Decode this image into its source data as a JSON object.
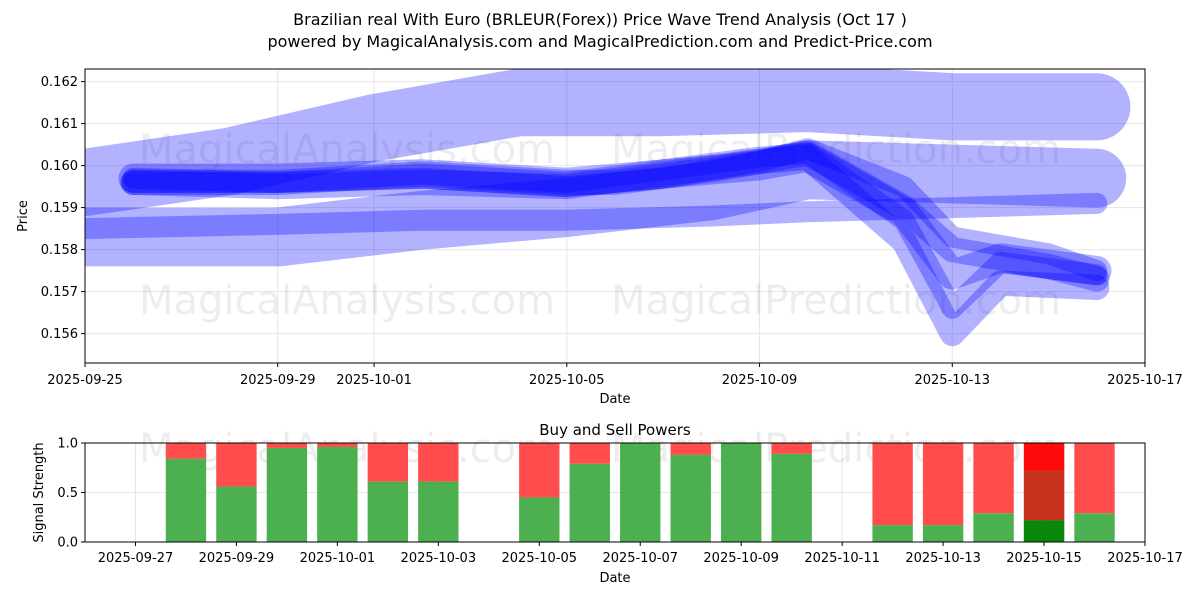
{
  "title_line1": "Brazilian real With Euro (BRLEUR(Forex)) Price Wave Trend Analysis (Oct 17 )",
  "title_line2": "powered by MagicalAnalysis.com and MagicalPrediction.com and Predict-Price.com",
  "watermarks": [
    "MagicalAnalysis.com",
    "MagicalPrediction.com"
  ],
  "colors": {
    "band": "#0000ff",
    "buy": "#008000",
    "sell": "#ff0000",
    "buy_bar": "#4caf50",
    "sell_bar": "#ff4d4d",
    "grid": "#e6e6e6"
  },
  "chart_data": [
    {
      "type": "area",
      "title": "",
      "xlabel": "Date",
      "ylabel": "Price",
      "x_ticks": [
        "2025-09-25",
        "2025-09-29",
        "2025-10-01",
        "2025-10-05",
        "2025-10-09",
        "2025-10-13",
        "2025-10-17"
      ],
      "y_ticks": [
        "0.156",
        "0.157",
        "0.158",
        "0.159",
        "0.160",
        "0.161",
        "0.162"
      ],
      "ylim": [
        0.1553,
        0.1623
      ],
      "xlim": [
        "2025-09-25",
        "2025-10-17"
      ],
      "grid": true,
      "series": [
        {
          "x": [
            "2025-09-25",
            "2025-09-28",
            "2025-10-01",
            "2025-10-04",
            "2025-10-07",
            "2025-10-10",
            "2025-10-13",
            "2025-10-16"
          ],
          "y": [
            0.1596,
            0.1601,
            0.1609,
            0.1615,
            0.1615,
            0.1616,
            0.1614,
            0.1614
          ],
          "width": 0.0016
        },
        {
          "x": [
            "2025-09-25",
            "2025-09-29",
            "2025-10-02",
            "2025-10-05",
            "2025-10-08",
            "2025-10-10",
            "2025-10-13",
            "2025-10-16"
          ],
          "y": [
            0.1583,
            0.1583,
            0.1587,
            0.159,
            0.1594,
            0.1599,
            0.1598,
            0.1597
          ],
          "width": 0.0014
        },
        {
          "x": [
            "2025-09-25",
            "2025-09-29",
            "2025-10-02",
            "2025-10-05",
            "2025-10-08",
            "2025-10-10",
            "2025-10-13",
            "2025-10-16"
          ],
          "y": [
            0.1585,
            0.1586,
            0.1587,
            0.1587,
            0.1588,
            0.1589,
            0.159,
            0.1591
          ],
          "width": 0.0005
        },
        {
          "x": [
            "2025-09-26",
            "2025-09-29",
            "2025-10-02",
            "2025-10-05",
            "2025-10-06",
            "2025-10-08",
            "2025-10-10",
            "2025-10-12",
            "2025-10-13",
            "2025-10-15",
            "2025-10-16"
          ],
          "y": [
            0.1596,
            0.1596,
            0.1598,
            0.1596,
            0.1596,
            0.1599,
            0.1603,
            0.159,
            0.158,
            0.1576,
            0.1573
          ],
          "width": 0.0006
        },
        {
          "x": [
            "2025-09-26",
            "2025-09-29",
            "2025-10-02",
            "2025-10-05",
            "2025-10-07",
            "2025-10-09",
            "2025-10-10",
            "2025-10-12",
            "2025-10-13",
            "2025-10-15",
            "2025-10-16"
          ],
          "y": [
            0.1596,
            0.1596,
            0.1597,
            0.1595,
            0.1597,
            0.1601,
            0.1604,
            0.1595,
            0.1583,
            0.1579,
            0.1575
          ],
          "width": 0.0005
        },
        {
          "x": [
            "2025-09-26",
            "2025-09-29",
            "2025-10-02",
            "2025-10-05",
            "2025-10-07",
            "2025-10-09",
            "2025-10-10",
            "2025-10-12",
            "2025-10-13",
            "2025-10-14",
            "2025-10-16"
          ],
          "y": [
            0.1596,
            0.1595,
            0.1596,
            0.1595,
            0.1598,
            0.1601,
            0.1602,
            0.1582,
            0.156,
            0.1572,
            0.1571
          ],
          "width": 0.0006
        },
        {
          "x": [
            "2025-09-26",
            "2025-09-29",
            "2025-10-02",
            "2025-10-05",
            "2025-10-07",
            "2025-10-09",
            "2025-10-10",
            "2025-10-12",
            "2025-10-13",
            "2025-10-14",
            "2025-10-16"
          ],
          "y": [
            0.1597,
            0.1596,
            0.1598,
            0.1596,
            0.1599,
            0.1602,
            0.1603,
            0.1587,
            0.1566,
            0.1577,
            0.1574
          ],
          "width": 0.0005
        },
        {
          "x": [
            "2025-09-26",
            "2025-09-29",
            "2025-10-02",
            "2025-10-05",
            "2025-10-07",
            "2025-10-09",
            "2025-10-10",
            "2025-10-12",
            "2025-10-13",
            "2025-10-14",
            "2025-10-16"
          ],
          "y": [
            0.1597,
            0.1597,
            0.1598,
            0.1596,
            0.1598,
            0.16,
            0.1602,
            0.1589,
            0.1574,
            0.1578,
            0.1575
          ],
          "width": 0.0007
        }
      ]
    },
    {
      "type": "bar",
      "title": "Buy and Sell Powers",
      "xlabel": "Date",
      "ylabel": "Signal Strength",
      "x_ticks": [
        "2025-09-27",
        "2025-09-29",
        "2025-10-01",
        "2025-10-03",
        "2025-10-05",
        "2025-10-07",
        "2025-10-09",
        "2025-10-11",
        "2025-10-13",
        "2025-10-15",
        "2025-10-17"
      ],
      "y_ticks": [
        "0.0",
        "0.5",
        "1.0"
      ],
      "ylim": [
        0,
        1
      ],
      "xlim": [
        "2025-09-26",
        "2025-10-17"
      ],
      "grid": true,
      "bars": [
        {
          "date": "2025-09-28",
          "buy": 0.84
        },
        {
          "date": "2025-09-29",
          "buy": 0.56
        },
        {
          "date": "2025-09-30",
          "buy": 0.95
        },
        {
          "date": "2025-10-01",
          "buy": 0.96
        },
        {
          "date": "2025-10-02",
          "buy": 0.61
        },
        {
          "date": "2025-10-03",
          "buy": 0.61
        },
        {
          "date": "2025-10-05",
          "buy": 0.45
        },
        {
          "date": "2025-10-06",
          "buy": 0.79
        },
        {
          "date": "2025-10-07",
          "buy": 1.0
        },
        {
          "date": "2025-10-08",
          "buy": 0.88
        },
        {
          "date": "2025-10-09",
          "buy": 1.0
        },
        {
          "date": "2025-10-10",
          "buy": 0.89
        },
        {
          "date": "2025-10-12",
          "buy": 0.17
        },
        {
          "date": "2025-10-13",
          "buy": 0.17
        },
        {
          "date": "2025-10-14",
          "buy": 0.29
        },
        {
          "date": "2025-10-15",
          "buy": 0.22,
          "mid": 0.72
        },
        {
          "date": "2025-10-16",
          "buy": 0.29
        }
      ]
    }
  ]
}
